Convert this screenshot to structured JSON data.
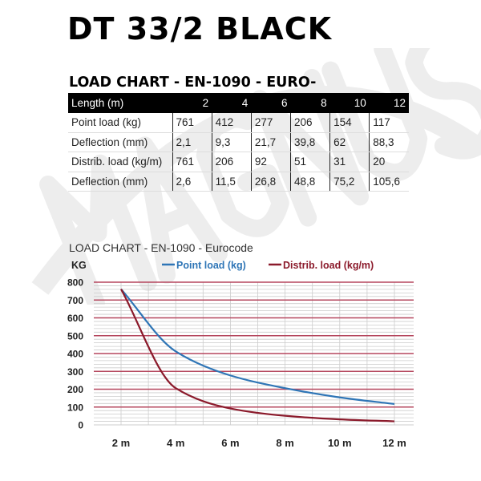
{
  "watermark": "MAGNUS",
  "title": "DT 33/2 BLACK",
  "table": {
    "title": "LOAD CHART - EN-1090 - EURO-",
    "headers": [
      "Length (m)",
      "2",
      "4",
      "6",
      "8",
      "10",
      "12"
    ],
    "rows": [
      [
        "Point load (kg)",
        "761",
        "412",
        "277",
        "206",
        "154",
        "117"
      ],
      [
        "Deflection (mm)",
        "2,1",
        "9,3",
        "21,7",
        "39,8",
        "62",
        "88,3"
      ],
      [
        "Distrib. load (kg/m)",
        "761",
        "206",
        "92",
        "51",
        "31",
        "20"
      ],
      [
        "Deflection (mm)",
        "2,6",
        "11,5",
        "26,8",
        "48,8",
        "75,2",
        "105,6"
      ]
    ]
  },
  "chart_data": {
    "type": "line",
    "title": "LOAD CHART - EN-1090 - Eurocode",
    "ylabel": "KG",
    "x": [
      2,
      4,
      6,
      8,
      10,
      12
    ],
    "xtick_labels": [
      "2 m",
      "4 m",
      "6 m",
      "8 m",
      "10 m",
      "12 m"
    ],
    "yticks": [
      0,
      100,
      200,
      300,
      400,
      500,
      600,
      700,
      800
    ],
    "xlim": [
      1,
      12.2
    ],
    "ylim": [
      0,
      800
    ],
    "grid": true,
    "legend": "top",
    "series": [
      {
        "name": "Point load (kg)",
        "color": "#2e75b6",
        "values": [
          761,
          412,
          277,
          206,
          154,
          117
        ]
      },
      {
        "name": "Distrib. load (kg/m)",
        "color": "#8b1a2b",
        "values": [
          761,
          206,
          92,
          51,
          31,
          20
        ]
      }
    ],
    "major_grid_color": "#b5475e",
    "minor_grid_color": "#cccccc"
  }
}
